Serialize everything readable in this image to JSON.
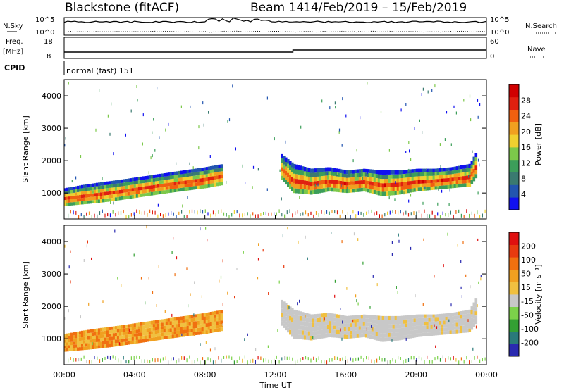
{
  "header": {
    "radar": "Blackstone (fitACF)",
    "beam": "Beam 14",
    "date_range": "14/Feb/2019 – 15/Feb/2019"
  },
  "top_strip": {
    "nsky_label": "N.Sky",
    "nsearch_label": "N.Search",
    "noise_left_ticks": [
      "10^5",
      "10^0"
    ],
    "noise_right_ticks": [
      "10^5",
      "10^0"
    ],
    "freq_label_line1": "Freq.",
    "freq_label_line2": "[MHz]",
    "freq_ticks": [
      "18",
      "8"
    ],
    "nave_label": "Nave",
    "nave_ticks": [
      "60",
      "0"
    ],
    "cpid_label": "CPID",
    "cpid_value": "normal (fast) 151"
  },
  "colors": {
    "power": [
      "#1010f0",
      "#2255b0",
      "#3a7a70",
      "#3c9e5a",
      "#7cc84a",
      "#f0d030",
      "#f0a020",
      "#f06010",
      "#e02010",
      "#d00000"
    ],
    "velocity": [
      "#2a2ab0",
      "#2a7a7a",
      "#33a033",
      "#7cd24a",
      "#c8c8c8",
      "#f0c040",
      "#f0a020",
      "#f07010",
      "#e83a10",
      "#e01010"
    ],
    "line": "#000000"
  },
  "chart_data": [
    {
      "type": "heatmap",
      "name": "power",
      "ylabel": "Slant Range [km]",
      "y_ticks": [
        "1000",
        "2000",
        "3000",
        "4000"
      ],
      "ylim": [
        200,
        4500
      ],
      "colorbar_label": "Power [dB]",
      "colorbar_ticks": [
        "4",
        "8",
        "12",
        "16",
        "20",
        "24",
        "28"
      ],
      "colorbar_range": [
        0,
        30
      ],
      "bands": [
        {
          "t": [
            0,
            1,
            2,
            3,
            4,
            5,
            6,
            7,
            8,
            9
          ],
          "lower": [
            600,
            650,
            700,
            770,
            850,
            930,
            1010,
            1080,
            1150,
            1250
          ],
          "upper": [
            1150,
            1250,
            1330,
            1400,
            1480,
            1560,
            1640,
            1720,
            1800,
            1900
          ]
        },
        {
          "t": [
            12.3,
            13,
            14,
            15,
            16,
            17,
            18,
            19,
            20,
            21,
            22,
            23,
            23.4
          ],
          "lower": [
            1400,
            1000,
            950,
            1050,
            1000,
            1050,
            900,
            950,
            1050,
            1100,
            1150,
            1200,
            1500
          ],
          "upper": [
            2200,
            1900,
            1750,
            1800,
            1700,
            1750,
            1700,
            1700,
            1750,
            1750,
            1800,
            1900,
            2300
          ]
        }
      ]
    },
    {
      "type": "heatmap",
      "name": "velocity",
      "ylabel": "Slant Range [km]",
      "y_ticks": [
        "1000",
        "2000",
        "3000",
        "4000"
      ],
      "ylim": [
        200,
        4500
      ],
      "colorbar_label": "Velocity [m s⁻¹]",
      "colorbar_ticks": [
        "200",
        "100",
        "50",
        "15",
        "-15",
        "-50",
        "-100",
        "-200"
      ],
      "colorbar_range": [
        -250,
        250
      ],
      "x_ticks": [
        "00:00",
        "04:00",
        "08:00",
        "12:00",
        "16:00",
        "20:00",
        "00:00"
      ],
      "xlabel": "Time UT",
      "xlim": [
        0,
        24
      ]
    }
  ]
}
